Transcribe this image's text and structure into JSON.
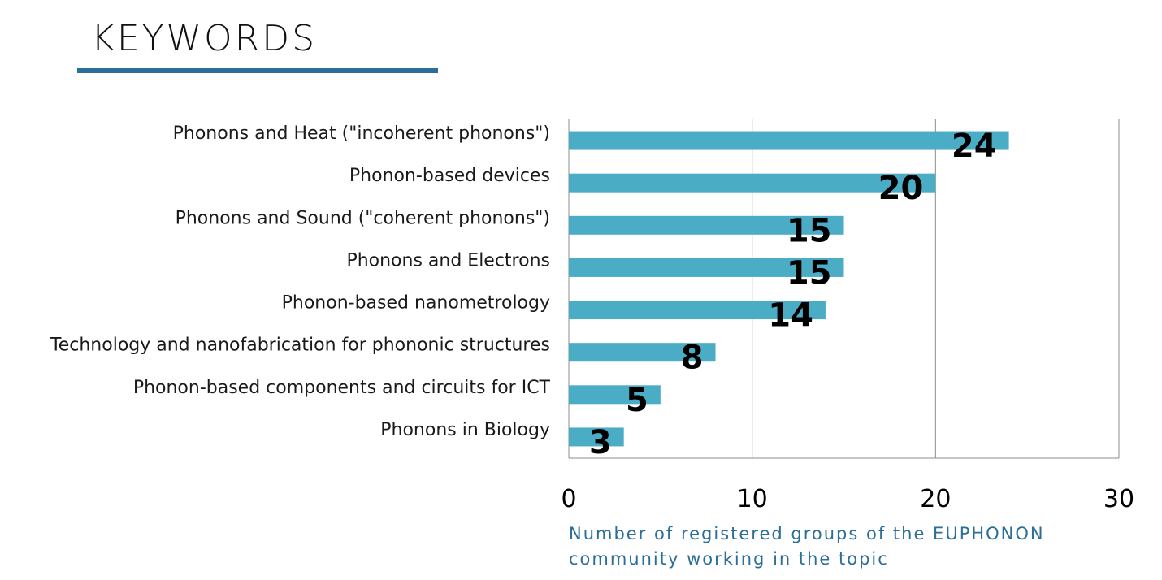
{
  "page": {
    "title": "KEYWORDS"
  },
  "colors": {
    "bar": "#4bacc6",
    "accent": "#2a6e99",
    "gridline": "#8c8c8c"
  },
  "chart_data": {
    "type": "bar",
    "orientation": "horizontal",
    "categories": [
      "Phonons and Heat (\"incoherent phonons\")",
      "Phonon-based devices",
      "Phonons and Sound (\"coherent phonons\")",
      "Phonons and Electrons",
      "Phonon-based nanometrology",
      "Technology and nanofabrication for phononic structures",
      "Phonon-based components and circuits for ICT",
      "Phonons in Biology"
    ],
    "values": [
      24,
      20,
      15,
      15,
      14,
      8,
      5,
      3
    ],
    "xlabel": "Number of registered groups of the EUPHONON community working in the topic",
    "xlabel_lines": [
      "Number of registered groups of the EUPHONON",
      "community working in the topic"
    ],
    "xlim": [
      0,
      30
    ],
    "xticks": [
      0,
      10,
      20,
      30
    ],
    "grid": true,
    "legend": "none"
  }
}
